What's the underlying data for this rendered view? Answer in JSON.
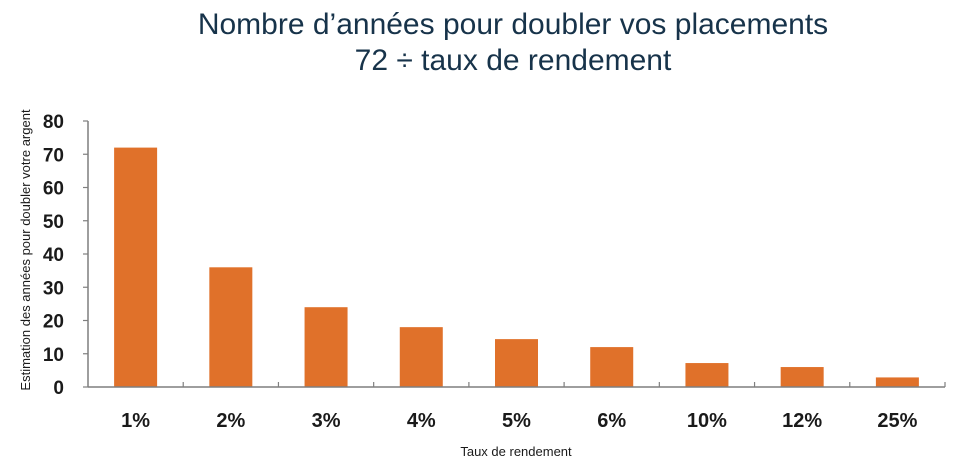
{
  "chart_data": {
    "type": "bar",
    "title": "Nombre d’années pour doubler vos placements",
    "subtitle": "72 ÷ taux de rendement",
    "xlabel": "Taux de rendement",
    "ylabel": "Estimation des années pour doubler votre argent",
    "categories": [
      "1%",
      "2%",
      "3%",
      "4%",
      "5%",
      "6%",
      "10%",
      "12%",
      "25%"
    ],
    "values": [
      72,
      36,
      24,
      18,
      14.4,
      12,
      7.2,
      6,
      2.88
    ],
    "ylim": [
      0,
      80
    ],
    "yticks": [
      0,
      10,
      20,
      30,
      40,
      50,
      60,
      70,
      80
    ],
    "grid": false,
    "legend": "none",
    "bar_color": "#e0712a",
    "axis_color": "#7f7f7f"
  }
}
